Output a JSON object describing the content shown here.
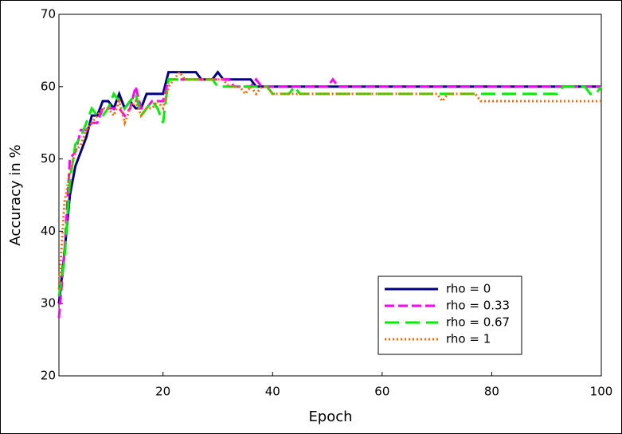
{
  "chart_data": {
    "type": "line",
    "xlabel": "Epoch",
    "ylabel": "Accuracy in %",
    "x": [
      1,
      2,
      3,
      4,
      5,
      6,
      7,
      8,
      9,
      10,
      11,
      12,
      13,
      14,
      15,
      16,
      17,
      18,
      19,
      20,
      21,
      22,
      23,
      24,
      25,
      26,
      27,
      28,
      29,
      30,
      31,
      32,
      33,
      34,
      35,
      36,
      37,
      38,
      39,
      40,
      41,
      42,
      43,
      44,
      45,
      46,
      47,
      48,
      49,
      50,
      51,
      52,
      53,
      54,
      55,
      56,
      57,
      58,
      59,
      60,
      61,
      62,
      63,
      64,
      65,
      66,
      67,
      68,
      69,
      70,
      71,
      72,
      73,
      74,
      75,
      76,
      77,
      78,
      79,
      80,
      81,
      82,
      83,
      84,
      85,
      86,
      87,
      88,
      89,
      90,
      91,
      92,
      93,
      94,
      95,
      96,
      97,
      98,
      99,
      100
    ],
    "xlim": [
      1,
      100
    ],
    "xticks": [
      20,
      40,
      60,
      80,
      100
    ],
    "ylim": [
      20,
      70
    ],
    "yticks": [
      20,
      30,
      40,
      50,
      60,
      70
    ],
    "legend": "lower right",
    "series": [
      {
        "name": "rho = 0",
        "color": "#000080",
        "style": "solid",
        "values": [
          30,
          37,
          45,
          49,
          51,
          53,
          56,
          56,
          58,
          58,
          57,
          59,
          57,
          58,
          57,
          57,
          59,
          59,
          59,
          59,
          62,
          62,
          62,
          62,
          62,
          62,
          61,
          61,
          61,
          62,
          61,
          61,
          61,
          61,
          61,
          61,
          60,
          60,
          60,
          60,
          60,
          60,
          60,
          60,
          60,
          60,
          60,
          60,
          60,
          60,
          60,
          60,
          60,
          60,
          60,
          60,
          60,
          60,
          60,
          60,
          60,
          60,
          60,
          60,
          60,
          60,
          60,
          60,
          60,
          60,
          60,
          60,
          60,
          60,
          60,
          60,
          60,
          60,
          60,
          60,
          60,
          60,
          60,
          60,
          60,
          60,
          60,
          60,
          60,
          60,
          60,
          60,
          60,
          60,
          60,
          60,
          60,
          60,
          60,
          60
        ]
      },
      {
        "name": "rho = 0.33",
        "color": "#ff00ff",
        "style": "dashed",
        "values": [
          28,
          37,
          50,
          51,
          54,
          54,
          55,
          55,
          57,
          57,
          57,
          57,
          56,
          57,
          60,
          57,
          57,
          58,
          58,
          58,
          61,
          61,
          61,
          61,
          61,
          61,
          61,
          61,
          61,
          61,
          61,
          61,
          60,
          60,
          60,
          60,
          61,
          60,
          60,
          60,
          60,
          60,
          60,
          60,
          60,
          60,
          60,
          60,
          60,
          60,
          61,
          60,
          60,
          60,
          60,
          60,
          60,
          60,
          60,
          60,
          60,
          60,
          60,
          60,
          60,
          60,
          60,
          60,
          60,
          60,
          60,
          60,
          60,
          60,
          60,
          60,
          60,
          60,
          60,
          60,
          60,
          60,
          60,
          60,
          60,
          60,
          60,
          60,
          60,
          60,
          60,
          60,
          60,
          60,
          60,
          60,
          60,
          60,
          60,
          60
        ]
      },
      {
        "name": "rho = 0.67",
        "color": "#00ee00",
        "style": "longdash",
        "values": [
          31,
          36,
          47,
          52,
          53,
          55,
          57,
          56,
          56,
          57,
          59,
          58,
          57,
          58,
          59,
          56,
          57,
          58,
          57,
          55,
          61,
          61,
          61,
          61,
          61,
          61,
          61,
          61,
          61,
          60,
          60,
          60,
          60,
          60,
          60,
          60,
          60,
          60,
          60,
          59,
          59,
          59,
          59,
          60,
          59,
          59,
          59,
          59,
          59,
          59,
          59,
          59,
          59,
          59,
          59,
          59,
          59,
          59,
          59,
          59,
          59,
          59,
          59,
          59,
          59,
          59,
          59,
          59,
          59,
          59,
          59,
          59,
          59,
          59,
          59,
          59,
          59,
          59,
          59,
          59,
          59,
          59,
          59,
          59,
          59,
          59,
          59,
          59,
          59,
          59,
          59,
          59,
          60,
          60,
          60,
          60,
          60,
          59,
          59,
          60
        ]
      },
      {
        "name": "rho = 1",
        "color": "#ff6600",
        "style": "dotted",
        "values": [
          32,
          44,
          48,
          51,
          52,
          54,
          55,
          56,
          57,
          57,
          56,
          58,
          55,
          57,
          58,
          56,
          57,
          57,
          58,
          57,
          60,
          61,
          62,
          61,
          61,
          61,
          61,
          61,
          61,
          61,
          61,
          60,
          60,
          60,
          59,
          60,
          59,
          60,
          60,
          59,
          59,
          59,
          59,
          59,
          59,
          59,
          59,
          59,
          59,
          59,
          59,
          59,
          59,
          59,
          59,
          59,
          59,
          59,
          59,
          59,
          59,
          59,
          59,
          59,
          59,
          59,
          59,
          59,
          59,
          59,
          58,
          59,
          59,
          59,
          59,
          59,
          59,
          58,
          58,
          58,
          58,
          58,
          58,
          58,
          58,
          58,
          58,
          58,
          58,
          58,
          58,
          58,
          58,
          58,
          58,
          58,
          58,
          58,
          58,
          58
        ]
      }
    ]
  }
}
